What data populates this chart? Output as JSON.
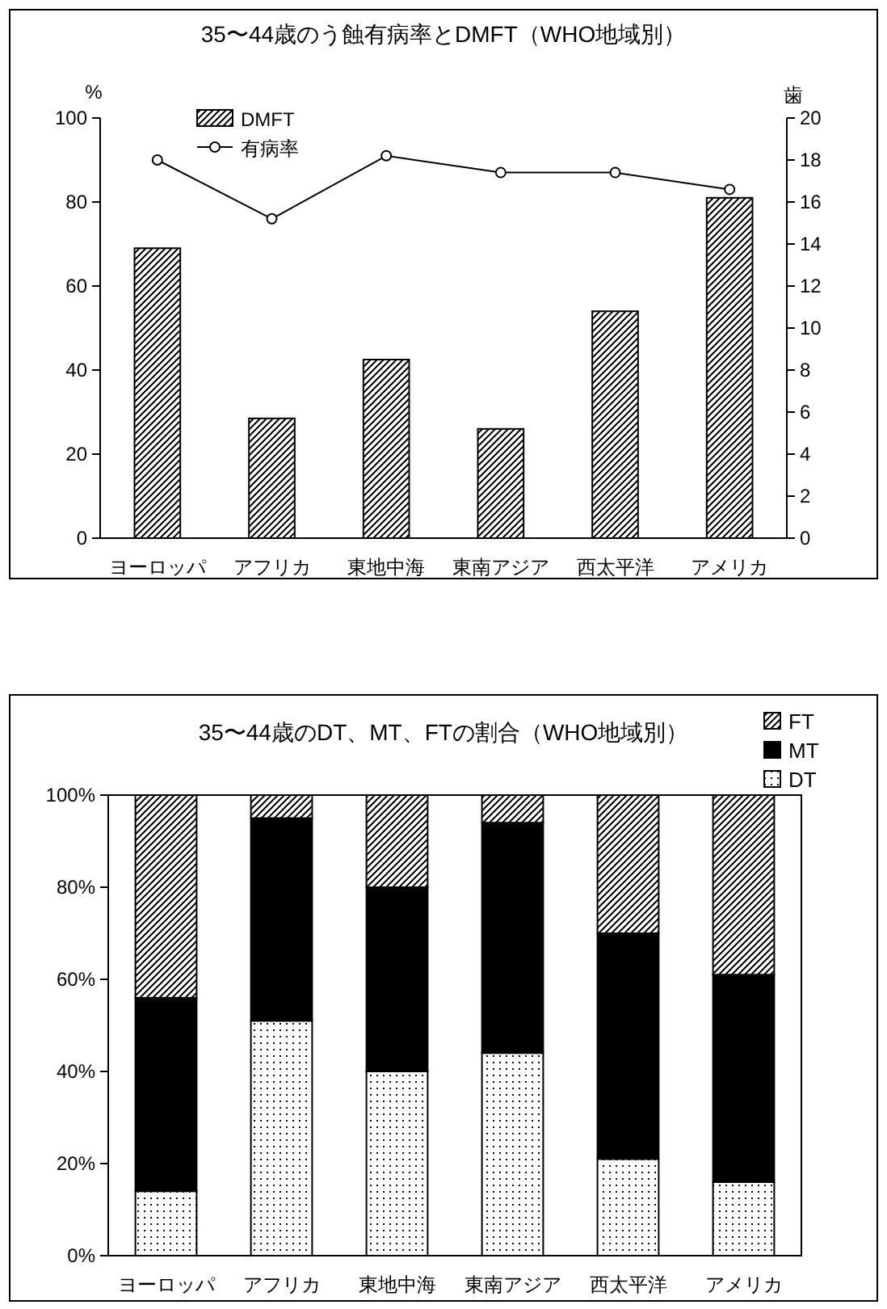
{
  "chart_data": [
    {
      "type": "bar",
      "title": "35〜44歳のう蝕有病率とDMFT（WHO地域別）",
      "categories": [
        "ヨーロッパ",
        "アフリカ",
        "東地中海",
        "東南アジア",
        "西太平洋",
        "アメリカ"
      ],
      "series": [
        {
          "name": "DMFT",
          "type": "bar",
          "axis": "y2",
          "color": "#000000",
          "values": [
            13.8,
            5.7,
            8.5,
            5.2,
            10.8,
            16.2
          ]
        },
        {
          "name": "有病率",
          "type": "line",
          "color": "#000000",
          "values": [
            90,
            76,
            91,
            87,
            87,
            83
          ]
        }
      ],
      "ylabel": "%",
      "y2label": "歯",
      "ylim": [
        0,
        100
      ],
      "yticks": [
        0,
        20,
        40,
        60,
        80,
        100
      ],
      "y2lim": [
        0,
        20
      ],
      "y2ticks": [
        0,
        2,
        4,
        6,
        8,
        10,
        12,
        14,
        16,
        18,
        20
      ],
      "legend": "top left",
      "marker": "circle",
      "line_style": "solid"
    },
    {
      "type": "bar",
      "title": "35〜44歳のDT、MT、FTの割合（WHO地域別）",
      "categories": [
        "ヨーロッパ",
        "アフリカ",
        "東地中海",
        "東南アジア",
        "西太平洋",
        "アメリカ"
      ],
      "stacked": true,
      "series": [
        {
          "name": "DT",
          "color": "#000000",
          "values": [
            14,
            51,
            40,
            44,
            21,
            16
          ]
        },
        {
          "name": "MT",
          "color": "#000000",
          "values": [
            42,
            44,
            40,
            50,
            49,
            45
          ]
        },
        {
          "name": "FT",
          "color": "#000000",
          "values": [
            44,
            5,
            20,
            6,
            30,
            39
          ]
        }
      ],
      "ylim": [
        0,
        100
      ],
      "yticks": [
        {
          "value": 0,
          "label": "0%"
        },
        {
          "value": 20,
          "label": "20%"
        },
        {
          "value": 40,
          "label": "40%"
        },
        {
          "value": 60,
          "label": "60%"
        },
        {
          "value": 80,
          "label": "80%"
        },
        {
          "value": 100,
          "label": "100%"
        }
      ],
      "legend": "top right"
    }
  ]
}
